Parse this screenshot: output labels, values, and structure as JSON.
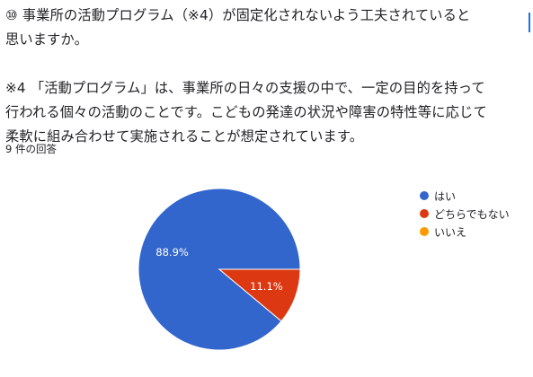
{
  "question": {
    "title": "⑩ 事業所の活動プログラム（※4）が固定化されないよう工夫されていると\n思いますか。",
    "note": "※4 「活動プログラム」は、事業所の日々の支援の中で、一定の目的を持って\n行われる個々の活動のことです。こどもの発達の状況や障害の特性等に応じて\n柔軟に組み合わせて実施されることが想定されています。"
  },
  "response_count": "9 件の回答",
  "chart_data": {
    "type": "pie",
    "title": "",
    "series": [
      {
        "label": "はい",
        "value": 88.9,
        "display": "88.9%",
        "color": "#3366cc"
      },
      {
        "label": "どちらでもない",
        "value": 11.1,
        "display": "11.1%",
        "color": "#dc3912"
      },
      {
        "label": "いいえ",
        "value": 0,
        "display": "",
        "color": "#ff9900"
      }
    ],
    "start_angle_deg": 0,
    "direction": "clockwise",
    "legend_position": "right"
  }
}
